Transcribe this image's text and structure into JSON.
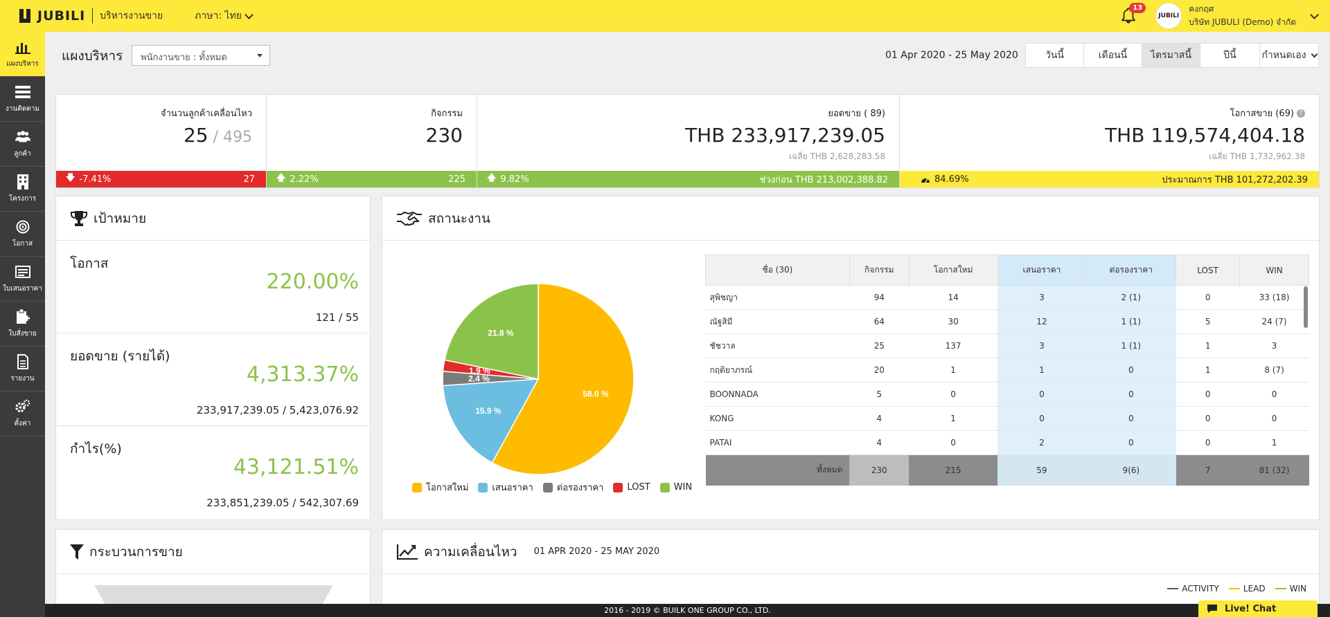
{
  "topbar": {
    "brand": "JUBILI",
    "brand_sub": "บริหารงานขาย",
    "language": "ภาษา: ไทย",
    "notifications": "13",
    "avatar_text": "JUBILI",
    "user_name": "คงกฤศ",
    "company": "บริษัท JUBULI (Demo) จำกัด"
  },
  "sidebar": [
    {
      "label": "แผงบริหาร",
      "icon": "bar-chart-icon"
    },
    {
      "label": "งานติดตาม",
      "icon": "task-list-icon"
    },
    {
      "label": "ลูกค้า",
      "icon": "users-icon"
    },
    {
      "label": "โครงการ",
      "icon": "building-icon"
    },
    {
      "label": "โอกาส",
      "icon": "target-icon"
    },
    {
      "label": "ใบเสนอราคา",
      "icon": "quotation-icon"
    },
    {
      "label": "ใบสั่งขาย",
      "icon": "clipboard-icon"
    },
    {
      "label": "รายงาน",
      "icon": "document-icon"
    },
    {
      "label": "ตั้งค่า",
      "icon": "gears-icon"
    }
  ],
  "header": {
    "title": "แผงบริหาร",
    "staff_filter": "พนักงานขาย : ทั้งหมด",
    "date_range": "01 Apr 2020 - 25 May 2020",
    "periods": [
      "วันนี้",
      "เดือนนี้",
      "ไตรมาสนี้",
      "ปีนี้",
      "กำหนดเอง"
    ],
    "active_period": "ไตรมาสนี้"
  },
  "kpis": [
    {
      "label": "จำนวนลูกค้าเคลื่อนไหว",
      "value": "25",
      "value_extra": " / 495",
      "sub": "",
      "bar_left": "-7.41%",
      "bar_right": "27",
      "bar_color": "#e32b2b",
      "arrow": "down",
      "text_color": "#ffffff"
    },
    {
      "label": "กิจกรรม",
      "value": "230",
      "value_extra": "",
      "sub": "",
      "bar_left": "2.22%",
      "bar_right": "225",
      "bar_color": "#8bc34a",
      "arrow": "up",
      "text_color": "#ffffff"
    },
    {
      "label": "ยอดขาย ( 89)",
      "value": "THB 233,917,239.05",
      "value_extra": "",
      "sub": "เฉลี่ย THB 2,628,283.58",
      "bar_left": "9.82%",
      "bar_right": "ช่วงก่อน THB 213,002,388.82",
      "bar_color": "#8bc34a",
      "arrow": "up",
      "text_color": "#ffffff"
    },
    {
      "label": "โอกาสขาย (69)",
      "value": "THB 119,574,404.18",
      "value_extra": "",
      "sub": "เฉลี่ย THB 1,732,962.38",
      "bar_left": "84.69%",
      "bar_right": "ประมาณการ THB 101,272,202.39",
      "bar_color": "#fde93a",
      "arrow": "gauge",
      "text_color": "#222222"
    }
  ],
  "goals": {
    "title": "เป้าหมาย",
    "items": [
      {
        "label": "โอกาส",
        "pct": "220.00%",
        "ratio": "121 / 55"
      },
      {
        "label": "ยอดขาย (รายได้)",
        "pct": "4,313.37%",
        "ratio": "233,917,239.05 / 5,423,076.92"
      },
      {
        "label": "กำไร(%)",
        "pct": "43,121.51%",
        "ratio": "233,851,239.05 / 542,307.69"
      }
    ]
  },
  "status": {
    "title": "สถานะงาน",
    "columns": [
      "ชื่อ (30)",
      "กิจกรรม",
      "โอกาสใหม่",
      "เสนอราคา",
      "ต่อรองราคา",
      "LOST",
      "WIN"
    ],
    "rows": [
      [
        "สุพิชญา",
        "94",
        "14",
        "3",
        "2 (1)",
        "0",
        "33 (18)"
      ],
      [
        "ณัฐสิมี",
        "64",
        "30",
        "12",
        "1 (1)",
        "5",
        "24 (7)"
      ],
      [
        "ชัชวาล",
        "25",
        "137",
        "3",
        "1 (1)",
        "1",
        "3"
      ],
      [
        "กฤติยาภรณ์",
        "20",
        "1",
        "1",
        "0",
        "1",
        "8 (7)"
      ],
      [
        "BOONNADA",
        "5",
        "0",
        "0",
        "0",
        "0",
        "0"
      ],
      [
        "KONG",
        "4",
        "1",
        "0",
        "0",
        "0",
        "0"
      ],
      [
        "PATAI",
        "4",
        "0",
        "2",
        "0",
        "0",
        "1"
      ]
    ],
    "totals": [
      "ทั้งหมด",
      "230",
      "215",
      "59",
      "9(6)",
      "7",
      "81 (32)"
    ]
  },
  "chart_data": {
    "type": "pie",
    "categories": [
      "โอกาสใหม่",
      "เสนอราคา",
      "ต่อรองราคา",
      "LOST",
      "WIN"
    ],
    "values": [
      58.0,
      15.9,
      2.4,
      1.9,
      21.8
    ],
    "slice_labels": [
      "58.0 %",
      "15.9 %",
      "2.4 %",
      "1.9 %",
      "21.8 %"
    ],
    "colors": [
      "#ffbb00",
      "#6bbedf",
      "#7b7b7b",
      "#e32b2b",
      "#8bc34a"
    ],
    "legend": "bottom"
  },
  "funnel": {
    "title": "กระบวนการขาย"
  },
  "movement": {
    "title": "ความเคลื่อนไหว",
    "date": "01 APR 2020 - 25 MAY 2020",
    "legend": [
      {
        "name": "ACTIVITY",
        "color": "#555555"
      },
      {
        "name": "LEAD",
        "color": "#ffbb00"
      },
      {
        "name": "WIN",
        "color": "#8bc34a"
      }
    ]
  },
  "footer": "2016 - 2019 © BUILK ONE GROUP CO., LTD.",
  "livechat": "Live! Chat"
}
